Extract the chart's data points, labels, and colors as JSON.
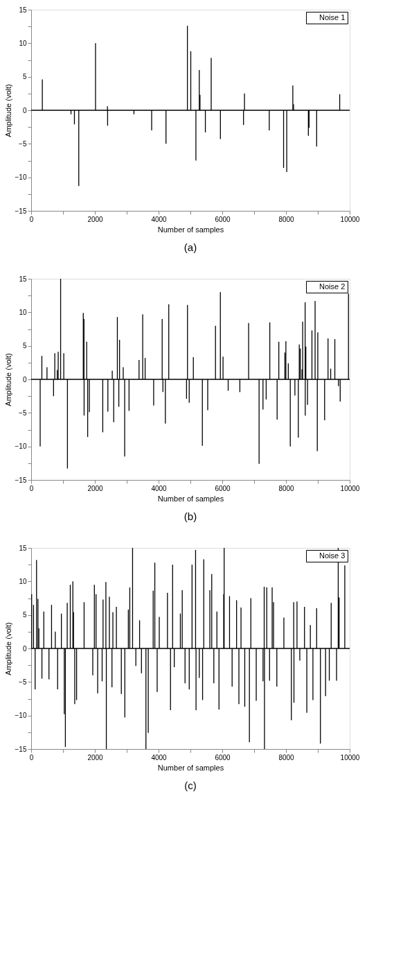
{
  "chart_data": [
    {
      "type": "bar",
      "title": "(a)",
      "xlabel": "Number of samples",
      "ylabel": "Amplitude (volt)",
      "legend": "top right",
      "grid": false,
      "xlim": [
        0,
        10000
      ],
      "ylim": [
        -15,
        15
      ],
      "xticks": [
        0,
        {
          "value": 1000,
          "label": null
        },
        2000,
        {
          "value": 3000,
          "label": null
        },
        4000,
        {
          "value": 5000,
          "label": null
        },
        6000,
        {
          "value": 7000,
          "label": null
        },
        8000,
        {
          "value": 9000,
          "label": null
        },
        10000
      ],
      "yticks": [
        -15,
        {
          "value": -12.5,
          "label": null
        },
        -10,
        {
          "value": -7.5,
          "label": null
        },
        -5,
        {
          "value": -2.5,
          "label": null
        },
        0,
        {
          "value": 2.5,
          "label": null
        },
        5,
        {
          "value": 7.5,
          "label": null
        },
        10,
        {
          "value": 12.5,
          "label": null
        },
        15
      ],
      "ref_lines": [
        {
          "axis": "y",
          "value": 0,
          "color": "#000000"
        }
      ],
      "series": [
        {
          "name": "Noise 1",
          "color": "#000000",
          "x": [
            351,
            1251,
            1358,
            1495,
            2021,
            2395,
            2400,
            3227,
            3783,
            4233,
            4905,
            5011,
            5172,
            5278,
            5301,
            5469,
            5652,
            5942,
            6667,
            6697,
            7475,
            7925,
            8024,
            8215,
            8238,
            8703,
            8725,
            8963,
            9687
          ],
          "values": [
            4.6,
            -0.6,
            -2.1,
            -11.3,
            10.0,
            0.6,
            -2.3,
            -0.6,
            -3.0,
            -5.0,
            12.6,
            8.8,
            -7.5,
            6.0,
            2.3,
            -3.3,
            7.8,
            -4.3,
            -2.2,
            2.5,
            -3.0,
            -8.6,
            -9.2,
            3.7,
            0.9,
            -3.8,
            -2.6,
            -5.4,
            2.4
          ]
        }
      ]
    },
    {
      "type": "bar",
      "title": "(b)",
      "xlabel": "Number of samples",
      "ylabel": "Amplitude (volt)",
      "legend": "top right",
      "grid": false,
      "xlim": [
        0,
        10000
      ],
      "ylim": [
        -15,
        15
      ],
      "xticks": [
        0,
        {
          "value": 1000,
          "label": null
        },
        2000,
        {
          "value": 3000,
          "label": null
        },
        4000,
        {
          "value": 5000,
          "label": null
        },
        6000,
        {
          "value": 7000,
          "label": null
        },
        8000,
        {
          "value": 9000,
          "label": null
        },
        10000
      ],
      "yticks": [
        -15,
        {
          "value": -12.5,
          "label": null
        },
        -10,
        {
          "value": -7.5,
          "label": null
        },
        -5,
        {
          "value": -2.5,
          "label": null
        },
        0,
        {
          "value": 2.5,
          "label": null
        },
        5,
        {
          "value": 7.5,
          "label": null
        },
        10,
        {
          "value": 12.5,
          "label": null
        },
        15
      ],
      "ref_lines": [
        {
          "axis": "y",
          "value": 0,
          "color": "#000000"
        }
      ],
      "series": [
        {
          "name": "Noise 2",
          "color": "#000000",
          "x": [
            283,
            336,
            497,
            703,
            742,
            818,
            849,
            925,
            1024,
            1139,
            1636,
            1659,
            1662,
            1743,
            1774,
            1827,
            2248,
            2408,
            2546,
            2592,
            2706,
            2752,
            2775,
            2890,
            2936,
            3073,
            3387,
            3502,
            3578,
            3846,
            4113,
            4136,
            4213,
            4320,
            4878,
            4908,
            4962,
            5092,
            5375,
            5543,
            5787,
            5940,
            6024,
            6185,
            6552,
            6827,
            7156,
            7278,
            7378,
            7492,
            7722,
            7775,
            7966,
            7997,
            8073,
            8135,
            8280,
            8387,
            8417,
            8448,
            8502,
            8524,
            8601,
            8605,
            8624,
            8677,
            8815,
            8914,
            8983,
            8999,
            9213,
            9320,
            9404,
            9534,
            9648,
            9702,
            9962
          ],
          "values": [
            -10.0,
            3.5,
            1.8,
            -2.5,
            3.9,
            1.4,
            4.1,
            15,
            3.9,
            -13.3,
            9.9,
            9.0,
            -5.4,
            5.6,
            -8.6,
            -4.9,
            -7.9,
            -4.8,
            1.3,
            -6.4,
            9.3,
            -4.1,
            5.9,
            1.8,
            -11.5,
            -4.7,
            2.9,
            9.7,
            3.2,
            -3.9,
            9.0,
            -1.9,
            -6.6,
            11.2,
            -2.9,
            11.1,
            -3.5,
            3.3,
            -9.9,
            -4.6,
            8.0,
            13.0,
            3.4,
            -1.7,
            -1.9,
            8.4,
            -12.6,
            -4.5,
            -3.0,
            8.5,
            -6.0,
            5.6,
            4.0,
            5.7,
            2.4,
            -10.0,
            -2.4,
            -8.7,
            5.2,
            4.6,
            1.5,
            8.6,
            11.5,
            -5.4,
            4.9,
            -3.8,
            7.3,
            11.7,
            -10.7,
            7.0,
            -6.1,
            6.1,
            1.6,
            6.0,
            -1.0,
            -3.3,
            12.8
          ]
        }
      ]
    },
    {
      "type": "bar",
      "title": "(c)",
      "xlabel": "Number of samples",
      "ylabel": "Amplitude (volt)",
      "legend": "top right",
      "grid": false,
      "xlim": [
        0,
        10000
      ],
      "ylim": [
        -15,
        15
      ],
      "xticks": [
        0,
        {
          "value": 1000,
          "label": null
        },
        2000,
        {
          "value": 3000,
          "label": null
        },
        4000,
        {
          "value": 5000,
          "label": null
        },
        6000,
        {
          "value": 7000,
          "label": null
        },
        8000,
        {
          "value": 9000,
          "label": null
        },
        10000
      ],
      "yticks": [
        -15,
        {
          "value": -12.5,
          "label": null
        },
        -10,
        {
          "value": -7.5,
          "label": null
        },
        -5,
        {
          "value": -2.5,
          "label": null
        },
        0,
        {
          "value": 2.5,
          "label": null
        },
        5,
        {
          "value": 7.5,
          "label": null
        },
        10,
        {
          "value": 12.5,
          "label": null
        },
        15
      ],
      "ref_lines": [
        {
          "axis": "y",
          "value": 0,
          "color": "#000000"
        }
      ],
      "series": [
        {
          "name": "Noise 3",
          "color": "#000000",
          "x": [
            15,
            74,
            125,
            169,
            213,
            243,
            338,
            397,
            559,
            640,
            757,
            831,
            949,
            1040,
            1074,
            1132,
            1228,
            1309,
            1331,
            1368,
            1426,
            1662,
            1934,
            1985,
            2037,
            2088,
            2228,
            2257,
            2346,
            2360,
            2456,
            2537,
            2566,
            2676,
            2831,
            2941,
            3051,
            3096,
            3184,
            3287,
            3404,
            3463,
            3603,
            3676,
            3831,
            3882,
            3956,
            4022,
            4279,
            4375,
            4441,
            4493,
            4684,
            4743,
            4831,
            4963,
            5051,
            5162,
            5176,
            5279,
            5382,
            5419,
            5610,
            5669,
            5735,
            5831,
            5897,
            6044,
            6059,
            6228,
            6309,
            6449,
            6522,
            6588,
            6706,
            6852,
            6897,
            7066,
            7279,
            7316,
            7325,
            7397,
            7485,
            7566,
            7610,
            7713,
            7934,
            8169,
            8243,
            8250,
            8346,
            8434,
            8581,
            8654,
            8765,
            8846,
            8963,
            9081,
            9243,
            9360,
            9419,
            9588,
            9640,
            9669,
            9846
          ],
          "values": [
            8.1,
            6.5,
            -6.1,
            13.2,
            7.4,
            3.0,
            -4.5,
            5.5,
            -4.6,
            6.5,
            2.5,
            -6.1,
            5.2,
            -9.8,
            -14.7,
            6.8,
            9.5,
            10.0,
            5.4,
            -8.3,
            -7.7,
            6.9,
            -4.0,
            9.5,
            8.1,
            -6.7,
            -4.9,
            7.3,
            9.9,
            -15.0,
            7.7,
            -5.8,
            5.4,
            6.2,
            -6.8,
            -10.3,
            5.8,
            9.1,
            15,
            -2.6,
            4.2,
            -3.7,
            -15.0,
            -12.6,
            8.6,
            12.8,
            -6.5,
            4.7,
            8.3,
            -9.2,
            12.5,
            -2.8,
            5.2,
            8.7,
            -5.2,
            -6.1,
            12.5,
            14.7,
            -9.2,
            -4.4,
            -7.7,
            13.3,
            8.7,
            11.1,
            -5.2,
            5.5,
            -9.1,
            8.1,
            15,
            7.8,
            -5.7,
            7.2,
            -8.3,
            6.1,
            -8.7,
            -14.0,
            7.5,
            -7.8,
            -4.9,
            9.2,
            -15.0,
            9.1,
            -4.8,
            9.1,
            6.9,
            -5.7,
            4.6,
            -10.7,
            6.9,
            -8.1,
            7.0,
            -1.8,
            6.2,
            -9.6,
            3.5,
            -7.7,
            6.0,
            -14.2,
            -7.1,
            -4.8,
            6.8,
            -4.8,
            15,
            7.6,
            12.4
          ]
        }
      ]
    }
  ]
}
